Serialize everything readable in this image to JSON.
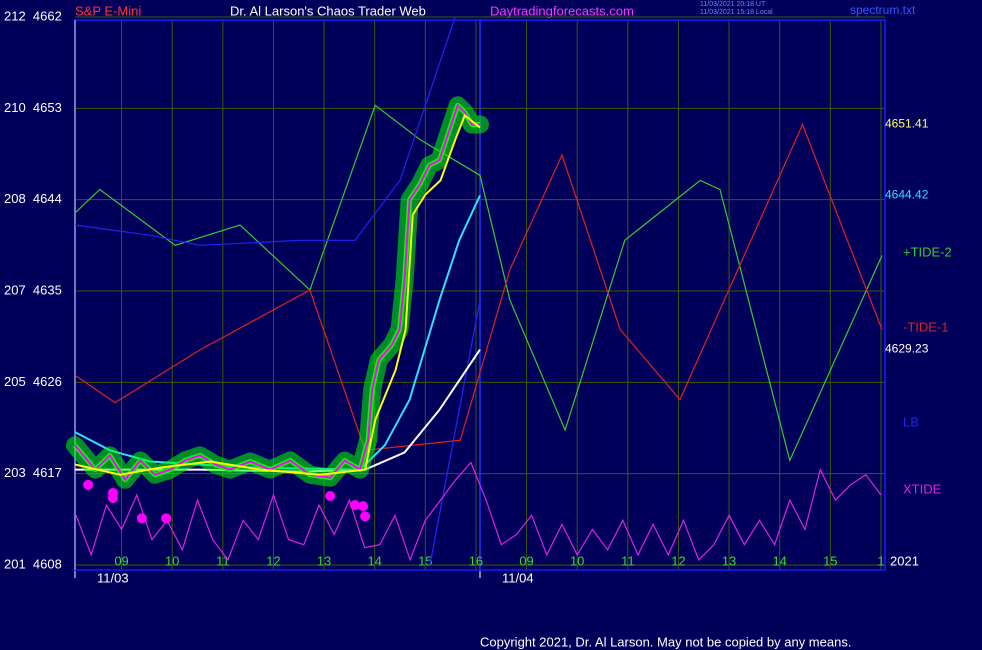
{
  "chart_data": {
    "type": "line",
    "title": "Dr. Al Larson's Chaos Trader Web",
    "symbol": "S&P E-Mini",
    "site": "Daytradingforecasts.com",
    "timestamps": [
      "11/03/2021 20:18 UT",
      "11/03/2021 15:18 Local"
    ],
    "file": "spectrum.txt",
    "year": "2021",
    "copyright": "Copyright 2021, Dr. Al Larson. May not be copied by any means.",
    "xlim": [
      0.08,
      16.08
    ],
    "ylim": [
      4608,
      4662
    ],
    "grid": true,
    "xticks": [
      {
        "value": 1,
        "label": "09"
      },
      {
        "value": 2,
        "label": "10"
      },
      {
        "value": 3,
        "label": "11"
      },
      {
        "value": 4,
        "label": "12"
      },
      {
        "value": 5,
        "label": "13"
      },
      {
        "value": 6,
        "label": "14"
      },
      {
        "value": 7,
        "label": "15"
      },
      {
        "value": 8,
        "label": "16"
      },
      {
        "value": 9,
        "label": "09"
      },
      {
        "value": 10,
        "label": "10"
      },
      {
        "value": 11,
        "label": "11"
      },
      {
        "value": 12,
        "label": "12"
      },
      {
        "value": 13,
        "label": "13"
      },
      {
        "value": 14,
        "label": "14"
      },
      {
        "value": 15,
        "label": "15"
      },
      {
        "value": 16,
        "label": "1"
      }
    ],
    "yticks": [
      {
        "value": 4608,
        "label": "201  4608"
      },
      {
        "value": 4617,
        "label": "203  4617"
      },
      {
        "value": 4626,
        "label": "205  4626"
      },
      {
        "value": 4635,
        "label": "207  4635"
      },
      {
        "value": 4644,
        "label": "208  4644"
      },
      {
        "value": 4653,
        "label": "210  4653"
      },
      {
        "value": 4662,
        "label": "212  4662"
      }
    ],
    "dates": [
      {
        "x": 0.08,
        "label": "11/03"
      },
      {
        "x": 8.08,
        "label": "11/04"
      }
    ],
    "day_boundary": 8.08,
    "series": [
      {
        "color": "#ff00ff",
        "band_color": "#00ff00",
        "x": [
          0.08,
          0.48,
          0.77,
          1.07,
          1.37,
          1.66,
          1.96,
          2.25,
          2.55,
          2.85,
          3.14,
          3.54,
          3.93,
          4.33,
          4.72,
          5.12,
          5.41,
          5.71,
          5.87,
          5.95,
          6.08,
          6.34,
          6.49,
          6.59,
          6.69,
          6.89,
          7.08,
          7.28,
          7.48,
          7.64,
          7.78,
          7.92,
          8.08
        ],
        "values": [
          4619.8,
          4617.4,
          4618.8,
          4616.4,
          4618.3,
          4616.9,
          4617.4,
          4618.3,
          4618.8,
          4617.9,
          4617.4,
          4618.2,
          4617.4,
          4618.3,
          4616.9,
          4616.6,
          4618.3,
          4617.4,
          4620.3,
          4625.3,
          4628.2,
          4629.7,
          4631.2,
          4636.1,
          4644.0,
          4645.5,
          4647.4,
          4647.9,
          4650.9,
          4653.3,
          4652.6,
          4651.4,
          4651.41
        ]
      },
      {
        "color": "#ffff00",
        "x": [
          0.08,
          0.97,
          1.76,
          2.75,
          3.74,
          4.92,
          5.81,
          6.01,
          6.41,
          6.61,
          6.75,
          7.0,
          7.3,
          7.59,
          7.78,
          8.08
        ],
        "values": [
          4617.9,
          4616.9,
          4617.6,
          4618.2,
          4617.4,
          4616.9,
          4617.4,
          4622.3,
          4627.2,
          4631.2,
          4642.5,
          4644.5,
          4645.9,
          4649.9,
          4652.3,
          4651.1
        ]
      },
      {
        "color": "#33ddff",
        "x": [
          0.08,
          0.77,
          1.56,
          3.54,
          5.71,
          6.2,
          6.69,
          7.28,
          7.67,
          8.08
        ],
        "values": [
          4621.1,
          4619.3,
          4618.2,
          4617.6,
          4617.4,
          4619.8,
          4624.3,
          4634.1,
          4640.0,
          4644.42
        ]
      },
      {
        "color": "#ffffff",
        "x": [
          0.08,
          2.55,
          4.52,
          5.81,
          6.59,
          7.28,
          8.08
        ],
        "values": [
          4617.4,
          4617.4,
          4617.2,
          4617.4,
          4619.1,
          4623.3,
          4629.23
        ]
      },
      {
        "name": "+TIDE-2",
        "color": "#33cc33",
        "x": [
          0.08,
          0.57,
          2.06,
          3.34,
          4.72,
          6.01,
          6.9,
          8.08,
          8.67,
          9.76,
          10.94,
          12.43,
          12.82,
          14.2,
          16.02
        ],
        "values": [
          4642.7,
          4645.0,
          4639.5,
          4641.5,
          4635.1,
          4653.3,
          4649.9,
          4646.4,
          4634.1,
          4621.3,
          4640.0,
          4645.9,
          4645.0,
          4618.3,
          4638.5
        ]
      },
      {
        "name": "-TIDE-1",
        "color": "#dd2222",
        "x": [
          0.08,
          0.87,
          2.55,
          4.72,
          5.81,
          7.69,
          8.67,
          9.7,
          10.85,
          12.03,
          14.45,
          16.02
        ],
        "values": [
          4626.7,
          4624.0,
          4629.2,
          4635.1,
          4619.3,
          4620.3,
          4637.1,
          4648.4,
          4631.2,
          4624.3,
          4651.4,
          4631.2
        ]
      },
      {
        "name": "LB",
        "color": "#2222ee",
        "x": [
          0.08,
          1.56,
          2.55,
          4.52,
          5.61,
          6.5,
          7.59
        ],
        "values": [
          4641.5,
          4640.5,
          4639.5,
          4640.0,
          4640.0,
          4645.9,
          4662
        ]
      },
      {
        "name": "XTIDE",
        "color": "#dd22dd",
        "x": [
          0.1,
          0.4,
          0.7,
          1.0,
          1.3,
          1.6,
          1.9,
          2.2,
          2.5,
          2.8,
          3.1,
          3.4,
          3.7,
          4.0,
          4.3,
          4.6,
          4.9,
          5.2,
          5.5,
          5.8,
          6.1,
          6.4,
          6.7,
          7.0,
          7.3,
          7.6,
          7.9,
          8.2,
          8.5,
          8.8,
          9.1,
          9.4,
          9.7,
          10.0,
          10.3,
          10.6,
          10.9,
          11.2,
          11.5,
          11.8,
          12.1,
          12.4,
          12.7,
          13.0,
          13.3,
          13.6,
          13.9,
          14.2,
          14.5,
          14.8,
          15.1,
          15.4,
          15.7,
          16.0
        ],
        "values": [
          4612.9,
          4609.0,
          4613.9,
          4611.5,
          4614.9,
          4610.5,
          4612.4,
          4609.5,
          4614.4,
          4610.5,
          4608.5,
          4612.4,
          4610.5,
          4614.9,
          4610.5,
          4610.0,
          4613.9,
          4611.0,
          4614.4,
          4609.7,
          4610.0,
          4612.9,
          4608.5,
          4612.4,
          4614.4,
          4616.4,
          4618.1,
          4614.4,
          4610.0,
          4611.0,
          4612.9,
          4609.0,
          4612.0,
          4609.0,
          4611.5,
          4609.5,
          4612.4,
          4609.0,
          4612.0,
          4609.0,
          4612.4,
          4608.5,
          4610.0,
          4612.9,
          4610.0,
          4612.4,
          4610.0,
          4614.4,
          4611.5,
          4617.4,
          4614.4,
          4615.9,
          4616.9,
          4614.9
        ]
      }
    ],
    "extra_lines": [
      {
        "color": "#2222ee",
        "x": [
          7.09,
          8.08
        ],
        "values": [
          4608.0,
          4634.1
        ]
      }
    ],
    "dots": {
      "color": "#ff00ff",
      "x": [
        0.34,
        0.83,
        0.83,
        1.4,
        1.88,
        5.12,
        5.61,
        5.81,
        5.77
      ],
      "values": [
        4615.9,
        4615.1,
        4614.6,
        4612.6,
        4612.6,
        4614.8,
        4613.9,
        4612.8,
        4613.8
      ]
    }
  }
}
